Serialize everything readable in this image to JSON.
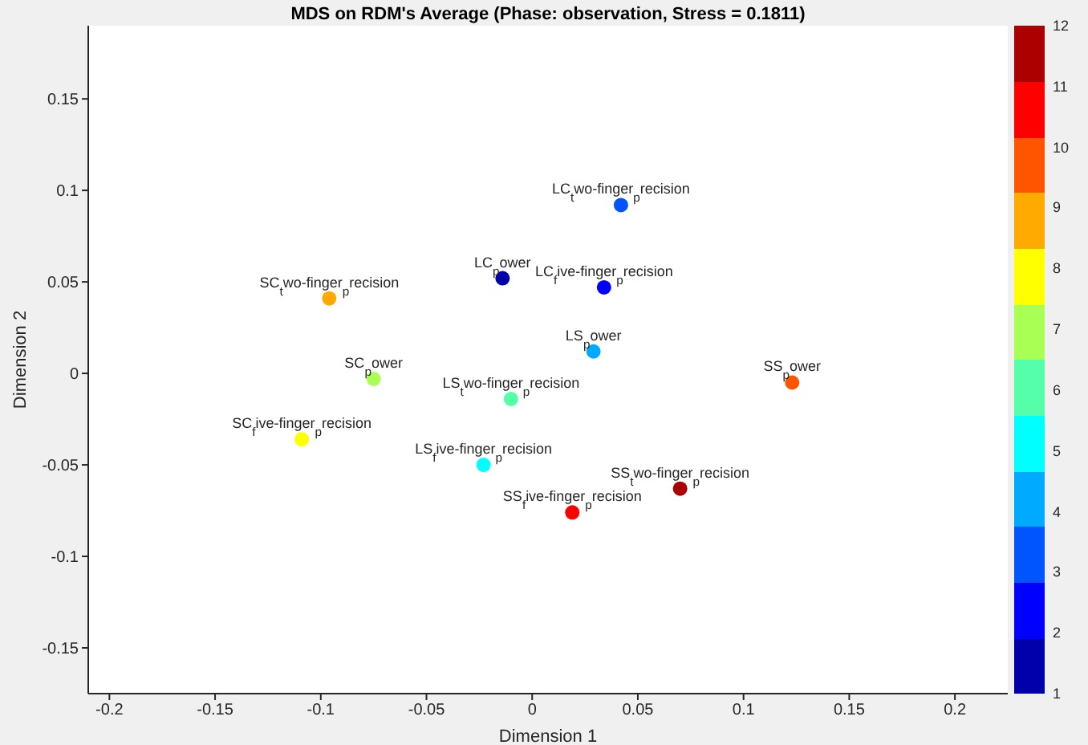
{
  "chart_data": {
    "type": "scatter",
    "title": "MDS on RDM's Average (Phase: observation, Stress = 0.1811)",
    "xlabel": "Dimension 1",
    "ylabel": "Dimension 2",
    "x": [
      0.042,
      -0.014,
      0.034,
      -0.096,
      0.029,
      -0.075,
      -0.01,
      0.123,
      -0.109,
      -0.023,
      0.07,
      0.019
    ],
    "values": [
      0.092,
      0.052,
      0.047,
      0.041,
      0.012,
      -0.003,
      -0.014,
      -0.005,
      -0.036,
      -0.05,
      -0.063,
      -0.076
    ],
    "cvalues": [
      3,
      1,
      2,
      9,
      4,
      7,
      6,
      10,
      8,
      5,
      12,
      11
    ],
    "xlim": [
      -0.21,
      0.225
    ],
    "xticks": [
      -0.2,
      -0.15,
      -0.1,
      -0.05,
      0,
      0.05,
      0.1,
      0.15,
      0.2
    ],
    "ylim": [
      -0.175,
      0.19
    ],
    "yticks": [
      -0.15,
      -0.1,
      -0.05,
      0,
      0.05,
      0.1,
      0.15
    ],
    "clim": [
      1,
      12
    ],
    "cticks": [
      1,
      2,
      3,
      4,
      5,
      6,
      7,
      8,
      9,
      10,
      11,
      12
    ],
    "grid": false,
    "legend": false,
    "marker": "circle",
    "annotations": [
      {
        "text": "LC$_{t}$wo-finger$_{p}$recision",
        "x": 0.042,
        "y": 0.092
      },
      {
        "text": "LC$_{p}$ower",
        "x": -0.014,
        "y": 0.052
      },
      {
        "text": "LC$_{f}$ive-finger$_{p}$recision",
        "x": 0.034,
        "y": 0.047
      },
      {
        "text": "SC$_{t}$wo-finger$_{p}$recision",
        "x": -0.096,
        "y": 0.041
      },
      {
        "text": "LS$_{p}$ower",
        "x": 0.029,
        "y": 0.012
      },
      {
        "text": "SC$_{p}$ower",
        "x": -0.075,
        "y": -0.003
      },
      {
        "text": "LS$_{t}$wo-finger$_{p}$recision",
        "x": -0.01,
        "y": -0.014
      },
      {
        "text": "SS$_{p}$ower",
        "x": 0.123,
        "y": -0.005
      },
      {
        "text": "SC$_{f}$ive-finger$_{p}$recision",
        "x": -0.109,
        "y": -0.036
      },
      {
        "text": "LS$_{f}$ive-finger$_{p}$recision",
        "x": -0.023,
        "y": -0.05
      },
      {
        "text": "SS$_{t}$wo-finger$_{p}$recision",
        "x": 0.07,
        "y": -0.063
      },
      {
        "text": "SS$_{f}$ive-finger$_{p}$recision",
        "x": 0.019,
        "y": -0.076
      }
    ]
  }
}
